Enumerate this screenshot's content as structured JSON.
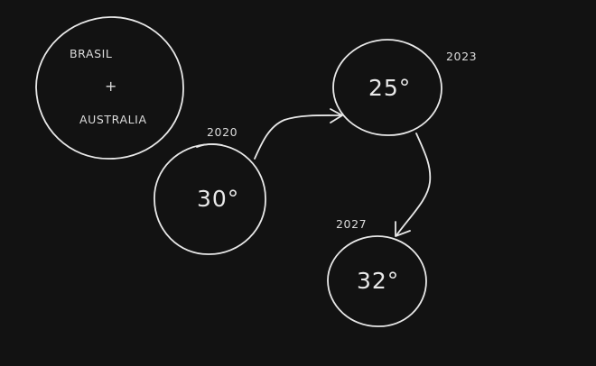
{
  "background_color": "#121212",
  "stroke_color": "#e8e8e8",
  "group": {
    "line1": "BRASIL",
    "plus": "+",
    "line2": "AUSTRALIA"
  },
  "nodes": [
    {
      "year": "2020",
      "value": "30°"
    },
    {
      "year": "2023",
      "value": "25°"
    },
    {
      "year": "2027",
      "value": "32°"
    }
  ]
}
